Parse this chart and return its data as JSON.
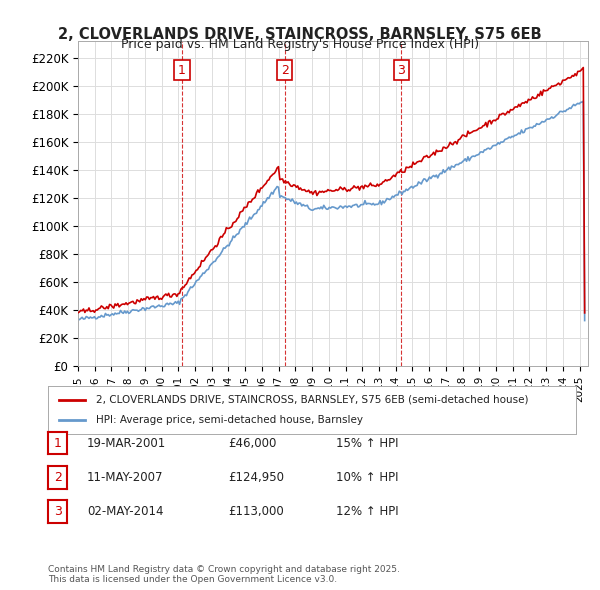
{
  "title1": "2, CLOVERLANDS DRIVE, STAINCROSS, BARNSLEY, S75 6EB",
  "title2": "Price paid vs. HM Land Registry's House Price Index (HPI)",
  "ylabel": "",
  "xlim_start": 1995.0,
  "xlim_end": 2025.5,
  "ylim_min": 0,
  "ylim_max": 230000,
  "yticks": [
    0,
    20000,
    40000,
    60000,
    80000,
    100000,
    120000,
    140000,
    160000,
    180000,
    200000,
    220000
  ],
  "ytick_labels": [
    "£0",
    "£20K",
    "£40K",
    "£60K",
    "£80K",
    "£100K",
    "£120K",
    "£140K",
    "£160K",
    "£180K",
    "£200K",
    "£220K"
  ],
  "sales": [
    {
      "date_x": 2001.22,
      "price": 46000,
      "label": "1"
    },
    {
      "date_x": 2007.36,
      "price": 124950,
      "label": "2"
    },
    {
      "date_x": 2014.33,
      "price": 113000,
      "label": "3"
    }
  ],
  "sale_color": "#cc0000",
  "hpi_color": "#6699cc",
  "legend_line1": "2, CLOVERLANDS DRIVE, STAINCROSS, BARNSLEY, S75 6EB (semi-detached house)",
  "legend_line2": "HPI: Average price, semi-detached house, Barnsley",
  "table_rows": [
    {
      "num": "1",
      "date": "19-MAR-2001",
      "price": "£46,000",
      "hpi": "15% ↑ HPI"
    },
    {
      "num": "2",
      "date": "11-MAY-2007",
      "price": "£124,950",
      "hpi": "10% ↑ HPI"
    },
    {
      "num": "3",
      "date": "02-MAY-2014",
      "price": "£113,000",
      "hpi": "12% ↑ HPI"
    }
  ],
  "footnote": "Contains HM Land Registry data © Crown copyright and database right 2025.\nThis data is licensed under the Open Government Licence v3.0.",
  "background_color": "#ffffff",
  "grid_color": "#dddddd"
}
